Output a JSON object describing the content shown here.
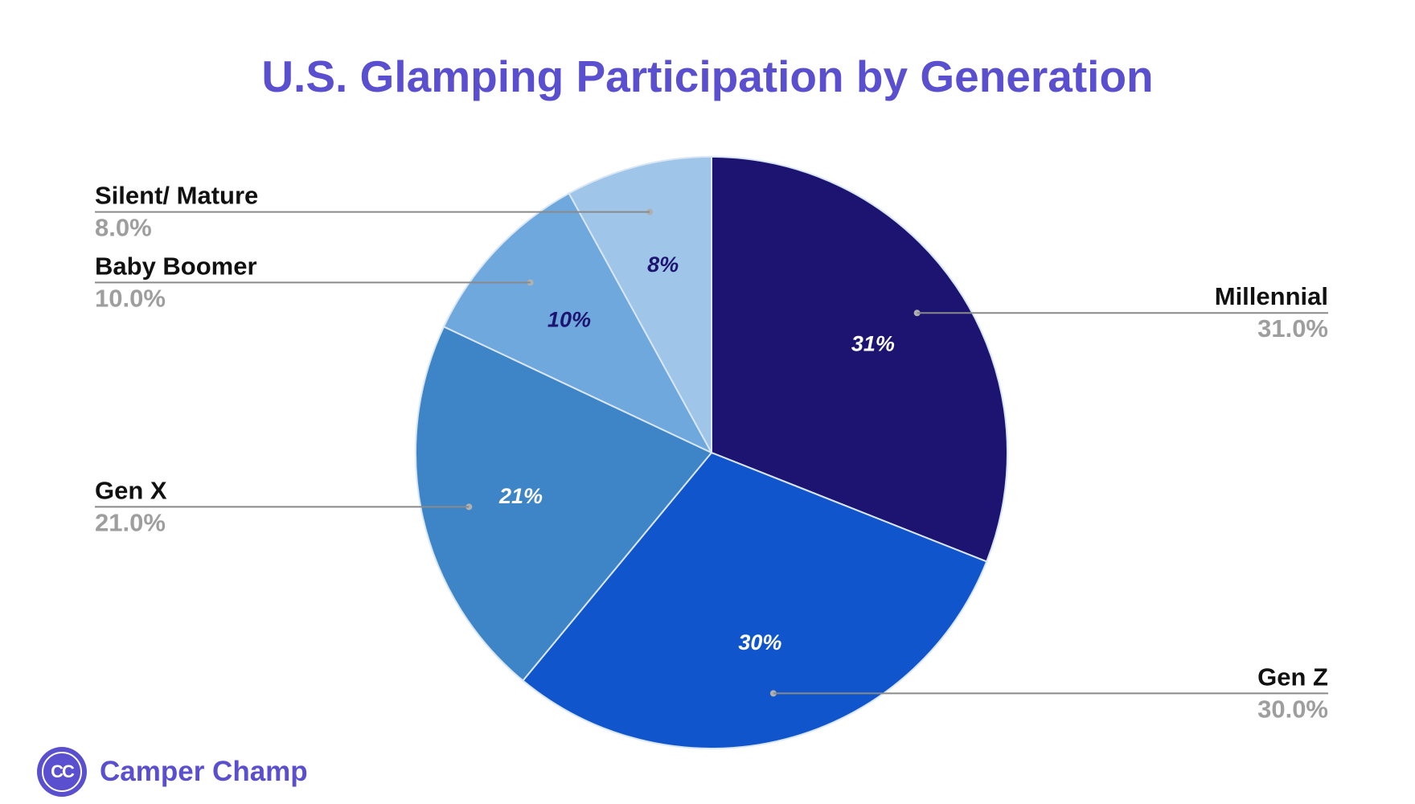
{
  "chart_data": {
    "type": "pie",
    "title": "U.S. Glamping Participation by Generation",
    "start_angle_deg": 0,
    "direction": "clockwise",
    "slices": [
      {
        "name": "Millennial",
        "value": 31,
        "pct_label": "31.0%",
        "inner_label": "31%",
        "color": "#1c1470",
        "inner_label_color": "#ffffff"
      },
      {
        "name": "Gen Z",
        "value": 30,
        "pct_label": "30.0%",
        "inner_label": "30%",
        "color": "#1155cc",
        "inner_label_color": "#ffffff"
      },
      {
        "name": "Gen X",
        "value": 21,
        "pct_label": "21.0%",
        "inner_label": "21%",
        "color": "#3d85c6",
        "inner_label_color": "#ffffff"
      },
      {
        "name": "Baby Boomer",
        "value": 10,
        "pct_label": "10.0%",
        "inner_label": "10%",
        "color": "#6fa8dc",
        "inner_label_color": "#1c1470"
      },
      {
        "name": "Silent/ Mature",
        "value": 8,
        "pct_label": "8.0%",
        "inner_label": "8%",
        "color": "#9fc5e8",
        "inner_label_color": "#1c1470"
      }
    ]
  },
  "colors": {
    "title": "#5a4fcf",
    "brand": "#5a4fcf",
    "leader_line": "#8a8a8a"
  },
  "brand": {
    "logo_text": "CC",
    "name": "Camper Champ",
    "logo_icon": "camper-champ-logo-icon"
  }
}
